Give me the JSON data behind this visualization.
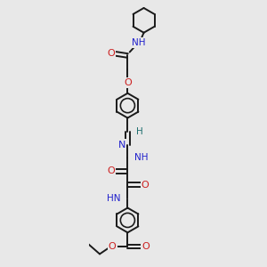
{
  "bg_color": "#e8e8e8",
  "bond_color": "#1a1a1a",
  "nitrogen_color": "#2020cc",
  "oxygen_color": "#cc2020",
  "hydrogen_color": "#207070",
  "line_width": 1.4,
  "figsize": [
    3.0,
    3.0
  ],
  "dpi": 100,
  "xlim": [
    -1.5,
    1.5
  ],
  "ylim": [
    -4.5,
    4.5
  ]
}
